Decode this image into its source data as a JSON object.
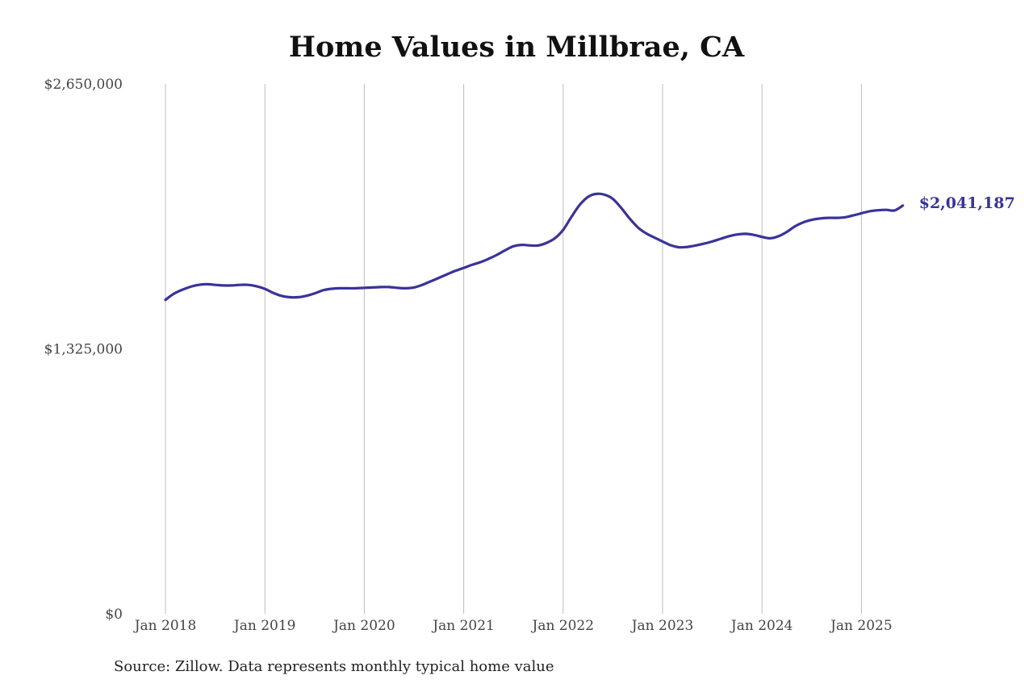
{
  "chart_data": {
    "type": "line",
    "title": "Home Values in Millbrae, CA",
    "source_note": "Source: Zillow. Data represents monthly typical home value",
    "xlabel": "",
    "ylabel": "",
    "ylim": [
      0,
      2650000
    ],
    "y_ticks": [
      {
        "value": 0,
        "label": "$0"
      },
      {
        "value": 1325000,
        "label": "$1,325,000"
      },
      {
        "value": 2650000,
        "label": "$2,650,000"
      }
    ],
    "x_ticks": [
      "Jan 2018",
      "Jan 2019",
      "Jan 2020",
      "Jan 2021",
      "Jan 2022",
      "Jan 2023",
      "Jan 2024",
      "Jan 2025"
    ],
    "grid": "vertical",
    "series_color": "#3a3399",
    "end_label": "$2,041,187",
    "series": [
      {
        "name": "",
        "points": [
          [
            "2018-01",
            1570000
          ],
          [
            "2018-02",
            1600000
          ],
          [
            "2018-03",
            1620000
          ],
          [
            "2018-04",
            1635000
          ],
          [
            "2018-05",
            1645000
          ],
          [
            "2018-06",
            1648000
          ],
          [
            "2018-07",
            1645000
          ],
          [
            "2018-08",
            1642000
          ],
          [
            "2018-09",
            1642000
          ],
          [
            "2018-10",
            1645000
          ],
          [
            "2018-11",
            1645000
          ],
          [
            "2018-12",
            1638000
          ],
          [
            "2019-01",
            1625000
          ],
          [
            "2019-02",
            1605000
          ],
          [
            "2019-03",
            1590000
          ],
          [
            "2019-04",
            1583000
          ],
          [
            "2019-05",
            1583000
          ],
          [
            "2019-06",
            1590000
          ],
          [
            "2019-07",
            1602000
          ],
          [
            "2019-08",
            1618000
          ],
          [
            "2019-09",
            1625000
          ],
          [
            "2019-10",
            1628000
          ],
          [
            "2019-11",
            1628000
          ],
          [
            "2019-12",
            1628000
          ],
          [
            "2020-01",
            1630000
          ],
          [
            "2020-02",
            1632000
          ],
          [
            "2020-03",
            1634000
          ],
          [
            "2020-04",
            1634000
          ],
          [
            "2020-05",
            1630000
          ],
          [
            "2020-06",
            1628000
          ],
          [
            "2020-07",
            1632000
          ],
          [
            "2020-08",
            1645000
          ],
          [
            "2020-09",
            1662000
          ],
          [
            "2020-10",
            1680000
          ],
          [
            "2020-11",
            1698000
          ],
          [
            "2020-12",
            1715000
          ],
          [
            "2021-01",
            1730000
          ],
          [
            "2021-02",
            1745000
          ],
          [
            "2021-03",
            1758000
          ],
          [
            "2021-04",
            1775000
          ],
          [
            "2021-05",
            1795000
          ],
          [
            "2021-06",
            1818000
          ],
          [
            "2021-07",
            1838000
          ],
          [
            "2021-08",
            1845000
          ],
          [
            "2021-09",
            1842000
          ],
          [
            "2021-10",
            1842000
          ],
          [
            "2021-11",
            1855000
          ],
          [
            "2021-12",
            1878000
          ],
          [
            "2022-01",
            1920000
          ],
          [
            "2022-02",
            1985000
          ],
          [
            "2022-03",
            2045000
          ],
          [
            "2022-04",
            2085000
          ],
          [
            "2022-05",
            2100000
          ],
          [
            "2022-06",
            2096000
          ],
          [
            "2022-07",
            2075000
          ],
          [
            "2022-08",
            2030000
          ],
          [
            "2022-09",
            1978000
          ],
          [
            "2022-10",
            1933000
          ],
          [
            "2022-11",
            1903000
          ],
          [
            "2022-12",
            1882000
          ],
          [
            "2023-01",
            1862000
          ],
          [
            "2023-02",
            1843000
          ],
          [
            "2023-03",
            1833000
          ],
          [
            "2023-04",
            1835000
          ],
          [
            "2023-05",
            1842000
          ],
          [
            "2023-06",
            1851000
          ],
          [
            "2023-07",
            1862000
          ],
          [
            "2023-08",
            1875000
          ],
          [
            "2023-09",
            1888000
          ],
          [
            "2023-10",
            1897000
          ],
          [
            "2023-11",
            1900000
          ],
          [
            "2023-12",
            1895000
          ],
          [
            "2024-01",
            1885000
          ],
          [
            "2024-02",
            1878000
          ],
          [
            "2024-03",
            1888000
          ],
          [
            "2024-04",
            1910000
          ],
          [
            "2024-05",
            1938000
          ],
          [
            "2024-06",
            1958000
          ],
          [
            "2024-07",
            1970000
          ],
          [
            "2024-08",
            1977000
          ],
          [
            "2024-09",
            1980000
          ],
          [
            "2024-10",
            1980000
          ],
          [
            "2024-11",
            1983000
          ],
          [
            "2024-12",
            1992000
          ],
          [
            "2025-01",
            2003000
          ],
          [
            "2025-02",
            2013000
          ],
          [
            "2025-03",
            2018000
          ],
          [
            "2025-04",
            2020000
          ],
          [
            "2025-05",
            2017000
          ],
          [
            "2025-06",
            2041187
          ]
        ]
      }
    ]
  }
}
